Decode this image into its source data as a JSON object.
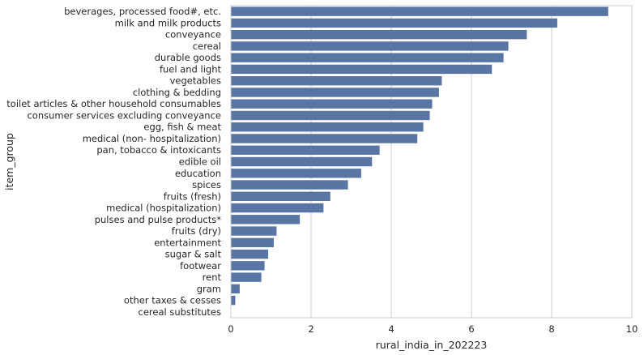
{
  "chart_data": {
    "type": "bar",
    "orientation": "horizontal",
    "xlabel": "rural_india_in_202223",
    "ylabel": "item_group",
    "xlim": [
      0,
      10
    ],
    "xticks": [
      "0",
      "2",
      "4",
      "6",
      "8",
      "10"
    ],
    "grid": "vertical",
    "bar_color": "#5975a4",
    "categories": [
      "beverages, processed food#, etc.",
      "milk and milk products",
      "conveyance",
      "cereal",
      "durable goods",
      "fuel and light",
      "vegetables",
      "clothing & bedding",
      "toilet articles & other household consumables",
      "consumer services excluding conveyance",
      "egg, fish & meat",
      "medical (non- hospitalization)",
      "pan, tobacco & intoxicants",
      "edible oil",
      "education",
      "spices",
      "fruits (fresh)",
      "medical (hospitalization)",
      "pulses and pulse products*",
      "fruits (dry)",
      "entertainment",
      "sugar & salt",
      "footwear",
      "rent",
      "gram",
      "other taxes & cesses",
      "cereal substitutes"
    ],
    "values": [
      9.41,
      8.14,
      7.38,
      6.92,
      6.8,
      6.51,
      5.26,
      5.19,
      5.02,
      4.96,
      4.8,
      4.65,
      3.71,
      3.52,
      3.25,
      2.92,
      2.48,
      2.31,
      1.72,
      1.14,
      1.07,
      0.93,
      0.84,
      0.76,
      0.22,
      0.11,
      0.01
    ]
  }
}
